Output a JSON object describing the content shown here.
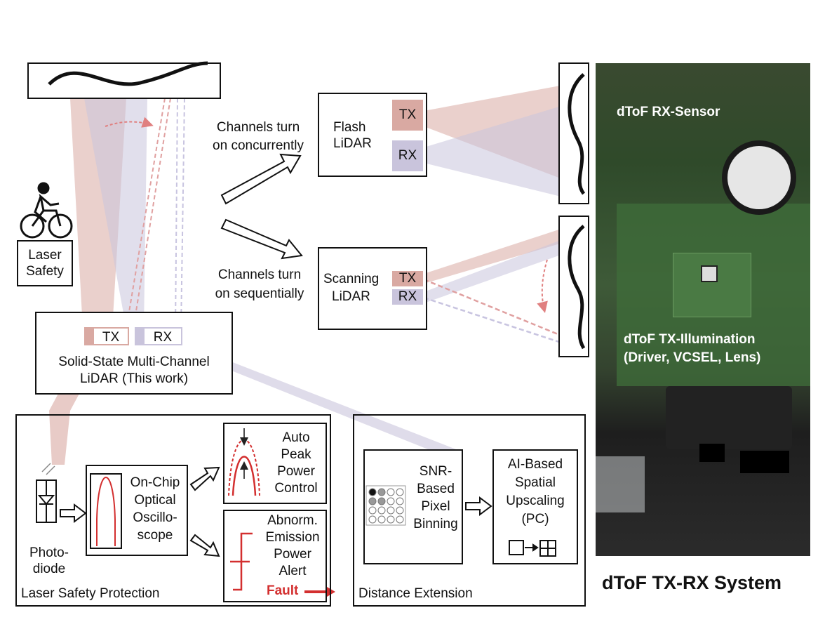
{
  "laser_safety": {
    "label_line1": "Laser",
    "label_line2": "Safety",
    "icon": "bicycle-rider-icon"
  },
  "flash": {
    "caption_line1": "Channels turn",
    "caption_line2": "on concurrently",
    "name_line1": "Flash",
    "name_line2": "LiDAR",
    "tx": "TX",
    "rx": "RX"
  },
  "scanning": {
    "caption_line1": "Channels turn",
    "caption_line2": "on sequentially",
    "name_line1": "Scanning",
    "name_line2": "LiDAR",
    "tx": "TX",
    "rx": "RX"
  },
  "solid_state": {
    "tx": "TX",
    "rx": "RX",
    "title_line1": "Solid-State Multi-Channel",
    "title_line2": "LiDAR (This work)"
  },
  "laser_protection": {
    "section_label": "Laser Safety Protection",
    "photodiode_line1": "Photo-",
    "photodiode_line2": "diode",
    "oscilloscope": [
      "On-Chip",
      "Optical",
      "Oscillo-",
      "scope"
    ],
    "auto_peak": [
      "Auto",
      "Peak",
      "Power",
      "Control"
    ],
    "abnormal": [
      "Abnorm.",
      "Emission",
      "Power",
      "Alert"
    ],
    "fault": "Fault",
    "accent_color": "#d32f2f"
  },
  "distance_extension": {
    "section_label": "Distance Extension",
    "binning": [
      "SNR-",
      "Based",
      "Pixel",
      "Binning"
    ],
    "upscaling": [
      "AI-Based",
      "Spatial",
      "Upscaling",
      "(PC)"
    ]
  },
  "photo": {
    "rx_label": "dToF RX-Sensor",
    "tx_label_line1": "dToF TX-Illumination",
    "tx_label_line2": "(Driver, VCSEL, Lens)"
  },
  "system_title": "dToF TX-RX System",
  "colors": {
    "tx": "#d9a9a2",
    "rx": "#c9c4dc"
  }
}
